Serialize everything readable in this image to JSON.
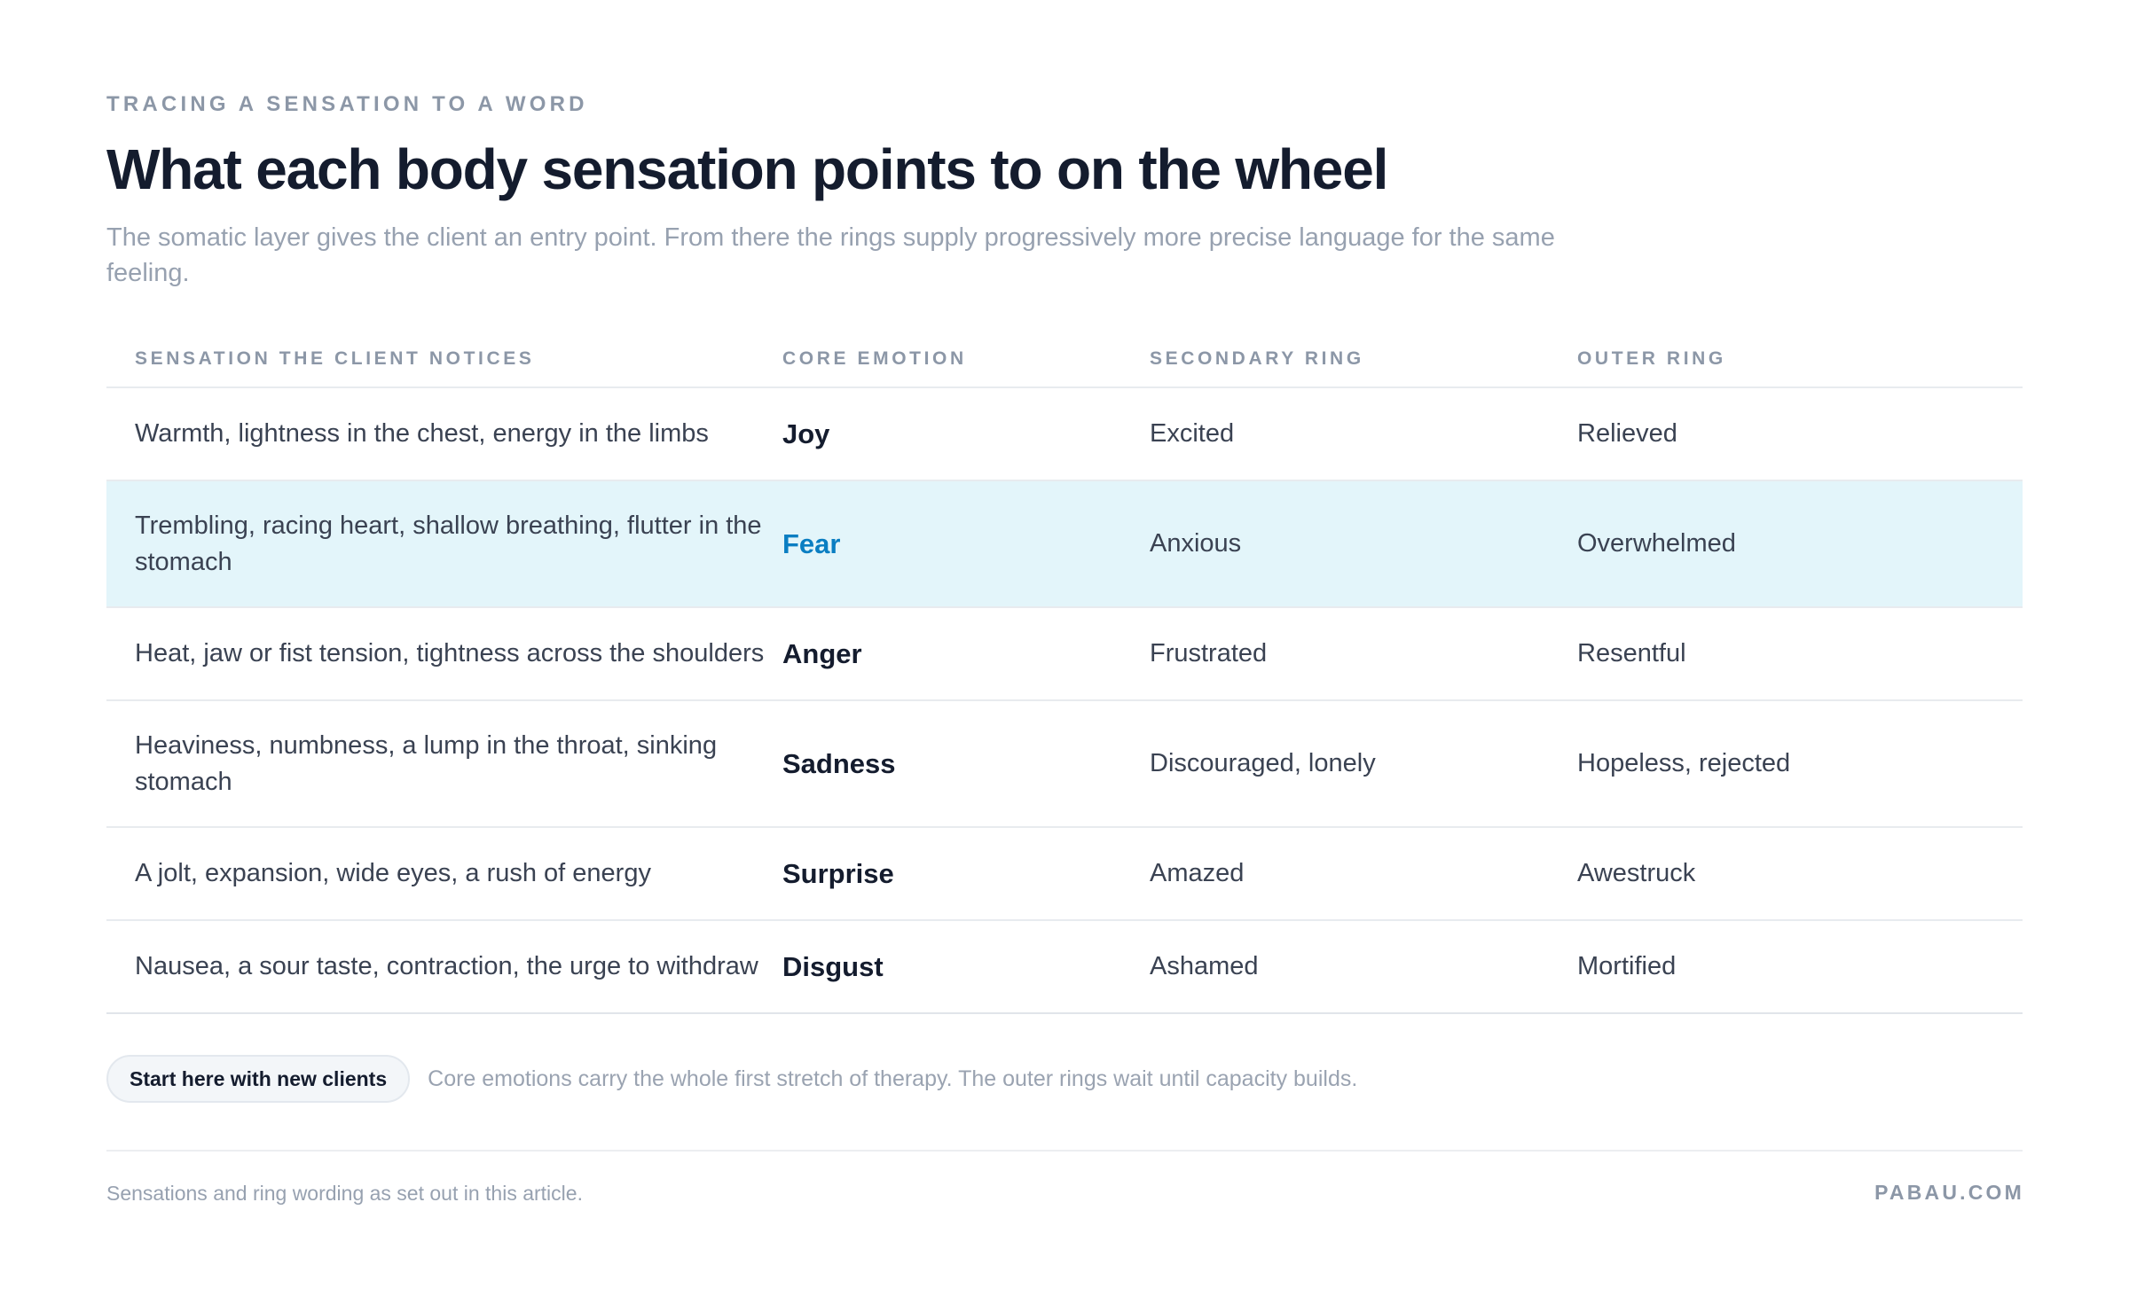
{
  "header": {
    "eyebrow": "TRACING A SENSATION TO A WORD",
    "title": "What each body sensation points to on the wheel",
    "subtitle": "The somatic layer gives the client an entry point. From there the rings supply progressively more precise language for the same feeling."
  },
  "table": {
    "columns": [
      "SENSATION THE CLIENT NOTICES",
      "CORE EMOTION",
      "SECONDARY RING",
      "OUTER RING"
    ],
    "rows": [
      {
        "sensation": "Warmth, lightness in the chest, energy in the limbs",
        "core": "Joy",
        "secondary": "Excited",
        "outer": "Relieved"
      },
      {
        "sensation": "Trembling, racing heart, shallow breathing, flutter in the stomach",
        "core": "Fear",
        "secondary": "Anxious",
        "outer": "Overwhelmed",
        "highlighted": true
      },
      {
        "sensation": "Heat, jaw or fist tension, tightness across the shoulders",
        "core": "Anger",
        "secondary": "Frustrated",
        "outer": "Resentful"
      },
      {
        "sensation": "Heaviness, numbness, a lump in the throat, sinking stomach",
        "core": "Sadness",
        "secondary": "Discouraged, lonely",
        "outer": "Hopeless, rejected"
      },
      {
        "sensation": "A jolt, expansion, wide eyes, a rush of energy",
        "core": "Surprise",
        "secondary": "Amazed",
        "outer": "Awestruck"
      },
      {
        "sensation": "Nausea, a sour taste, contraction, the urge to withdraw",
        "core": "Disgust",
        "secondary": "Ashamed",
        "outer": "Mortified"
      }
    ]
  },
  "note": {
    "pill_label": "Start here with new clients",
    "text": "Core emotions carry the whole first stretch of therapy. The outer rings wait until capacity builds."
  },
  "footer": {
    "source": "Sensations and ring wording as set out in this article.",
    "brand": "PABAU.COM"
  },
  "colors": {
    "accent": "#0a7ec2",
    "highlight_row": "#e3f5fa",
    "heading": "#141c2e",
    "muted": "#8c97a7"
  }
}
